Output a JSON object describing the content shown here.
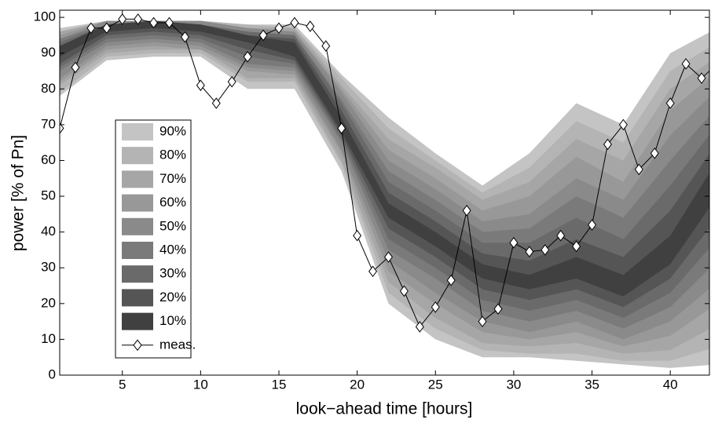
{
  "chart_data": {
    "type": "fan",
    "xlabel": "look−ahead time [hours]",
    "ylabel": "power [% of Pn]",
    "xlim": [
      1,
      42.5
    ],
    "ylim": [
      0,
      102
    ],
    "xticks": [
      5,
      10,
      15,
      20,
      25,
      30,
      35,
      40
    ],
    "yticks": [
      0,
      10,
      20,
      30,
      40,
      50,
      60,
      70,
      80,
      90,
      100
    ],
    "x": [
      1,
      4,
      7,
      10,
      13,
      16,
      19,
      22,
      25,
      28,
      31,
      34,
      37,
      40,
      43
    ],
    "series": [
      {
        "name": "90%",
        "color": "#c4c4c4",
        "upper": [
          97,
          99,
          99,
          99,
          98,
          98,
          84,
          72,
          62,
          53,
          62,
          76,
          70,
          90,
          97
        ],
        "lower": [
          78,
          88,
          89,
          89,
          80,
          80,
          57,
          20,
          10,
          5,
          5,
          4,
          3,
          2,
          3
        ]
      },
      {
        "name": "80%",
        "color": "#b4b4b4",
        "upper": [
          96,
          99,
          99,
          99,
          98,
          97,
          83,
          69,
          60,
          51,
          58,
          71,
          65,
          85,
          93
        ],
        "lower": [
          79,
          89,
          90,
          90,
          82,
          82,
          59,
          23,
          13,
          7,
          6,
          6,
          4,
          4,
          8
        ]
      },
      {
        "name": "70%",
        "color": "#a6a6a6",
        "upper": [
          96,
          99,
          99,
          99,
          97,
          97,
          81,
          66,
          58,
          49,
          54,
          66,
          60,
          80,
          89
        ],
        "lower": [
          81,
          90,
          91,
          91,
          83,
          83,
          60,
          26,
          16,
          9,
          8,
          9,
          6,
          7,
          14
        ]
      },
      {
        "name": "60%",
        "color": "#989898",
        "upper": [
          95,
          99,
          99,
          99,
          97,
          96,
          80,
          63,
          55,
          46,
          50,
          61,
          54,
          74,
          85
        ],
        "lower": [
          82,
          91,
          92,
          91,
          85,
          84,
          62,
          29,
          20,
          12,
          10,
          12,
          8,
          11,
          20
        ]
      },
      {
        "name": "50%",
        "color": "#8a8a8a",
        "upper": [
          94,
          99,
          99,
          99,
          97,
          96,
          79,
          60,
          52,
          43,
          45,
          55,
          49,
          67,
          80
        ],
        "lower": [
          83,
          92,
          93,
          92,
          86,
          85,
          63,
          32,
          23,
          15,
          12,
          15,
          10,
          15,
          26
        ]
      },
      {
        "name": "40%",
        "color": "#7a7a7a",
        "upper": [
          94,
          98,
          99,
          98,
          96,
          95,
          77,
          57,
          49,
          40,
          41,
          50,
          44,
          60,
          75
        ],
        "lower": [
          85,
          93,
          94,
          93,
          87,
          86,
          65,
          35,
          27,
          18,
          15,
          18,
          13,
          19,
          32
        ]
      },
      {
        "name": "30%",
        "color": "#6a6a6a",
        "upper": [
          93,
          98,
          99,
          98,
          96,
          95,
          76,
          54,
          46,
          37,
          37,
          44,
          38,
          53,
          70
        ],
        "lower": [
          86,
          94,
          95,
          94,
          89,
          87,
          66,
          38,
          30,
          21,
          18,
          21,
          16,
          23,
          38
        ]
      },
      {
        "name": "20%",
        "color": "#555555",
        "upper": [
          92,
          98,
          99,
          98,
          95,
          94,
          74,
          51,
          43,
          34,
          32,
          38,
          33,
          46,
          65
        ],
        "lower": [
          87,
          95,
          96,
          95,
          91,
          88,
          67,
          41,
          33,
          24,
          21,
          24,
          19,
          27,
          44
        ]
      },
      {
        "name": "10%",
        "color": "#404040",
        "upper": [
          92,
          98,
          99,
          98,
          95,
          93,
          72,
          48,
          40,
          31,
          28,
          33,
          28,
          39,
          60
        ],
        "lower": [
          89,
          96,
          97,
          96,
          93,
          89,
          68,
          44,
          36,
          27,
          24,
          27,
          22,
          31,
          50
        ]
      }
    ],
    "measured": {
      "name": "meas.",
      "color": "#000000",
      "x": [
        1,
        2,
        3,
        4,
        5,
        6,
        7,
        8,
        9,
        10,
        11,
        12,
        13,
        14,
        15,
        16,
        17,
        18,
        19,
        20,
        21,
        22,
        23,
        24,
        25,
        26,
        27,
        28,
        29,
        30,
        31,
        32,
        33,
        34,
        35,
        36,
        37,
        38,
        39,
        40,
        41,
        42,
        43
      ],
      "values": [
        69,
        86,
        97,
        97,
        99.5,
        99.5,
        98.5,
        98.5,
        94.5,
        81,
        76,
        82,
        89,
        95,
        97,
        98.5,
        97.5,
        92,
        69,
        39,
        29,
        33,
        23.5,
        13.5,
        19,
        26.5,
        46,
        15,
        18.5,
        37,
        34.5,
        35,
        39,
        36,
        42,
        64.5,
        70,
        57.5,
        62,
        76,
        87,
        83,
        87
      ]
    }
  }
}
